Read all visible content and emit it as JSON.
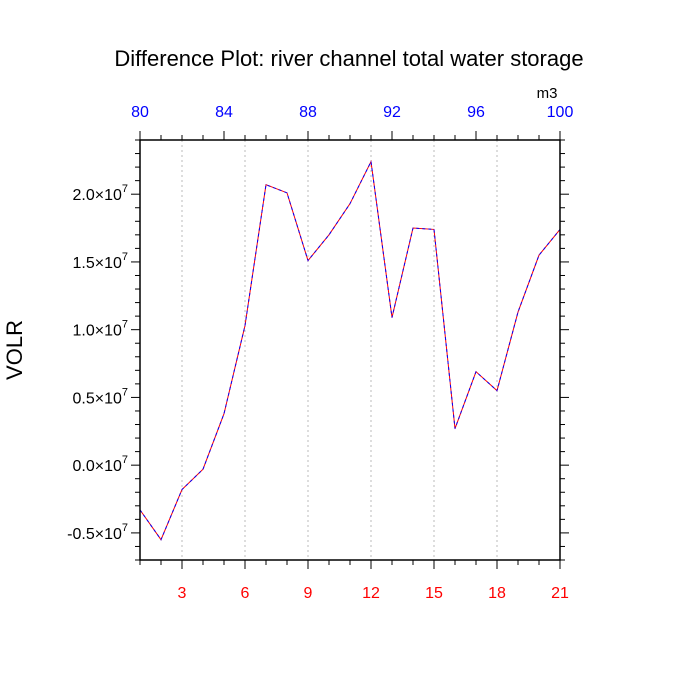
{
  "chart_data": {
    "type": "line",
    "title": "Difference Plot: river channel total water storage",
    "ylabel": "VOLR",
    "unit": "m3",
    "x": [
      1,
      2,
      3,
      4,
      5,
      6,
      7,
      8,
      9,
      10,
      11,
      12,
      13,
      14,
      15,
      16,
      17,
      18,
      19,
      20,
      21
    ],
    "series": [
      {
        "values": [
          -0.33,
          -0.55,
          -0.18,
          -0.03,
          0.38,
          1.03,
          2.07,
          2.01,
          1.51,
          1.7,
          1.93,
          2.24,
          1.09,
          1.75,
          1.74,
          0.27,
          0.69,
          0.55,
          1.13,
          1.55,
          1.74
        ],
        "scale": "x10^7",
        "color": "#6600cc"
      }
    ],
    "xlim": [
      1,
      21
    ],
    "ylim": [
      -0.7,
      2.4
    ],
    "y_tick_values": [
      -0.5,
      0.0,
      0.5,
      1.0,
      1.5,
      2.0
    ],
    "y_tick_labels": [
      {
        "mantissa": "-0.5",
        "times": "×10",
        "exp": "7"
      },
      {
        "mantissa": "0.0",
        "times": "×10",
        "exp": "7"
      },
      {
        "mantissa": "0.5",
        "times": "×10",
        "exp": "7"
      },
      {
        "mantissa": "1.0",
        "times": "×10",
        "exp": "7"
      },
      {
        "mantissa": "1.5",
        "times": "×10",
        "exp": "7"
      },
      {
        "mantissa": "2.0",
        "times": "×10",
        "exp": "7"
      }
    ],
    "bottom_axis": {
      "color": "#ff0000",
      "tick_values": [
        3,
        6,
        9,
        12,
        15,
        18,
        21
      ],
      "tick_labels": [
        "3",
        "6",
        "9",
        "12",
        "15",
        "18",
        "21"
      ]
    },
    "top_axis": {
      "color": "#0000ff",
      "range": [
        80,
        100
      ],
      "tick_values": [
        80,
        84,
        88,
        92,
        96,
        100
      ],
      "tick_labels": [
        "80",
        "84",
        "88",
        "92",
        "96",
        "100"
      ]
    },
    "grid": "vertical-dotted"
  }
}
